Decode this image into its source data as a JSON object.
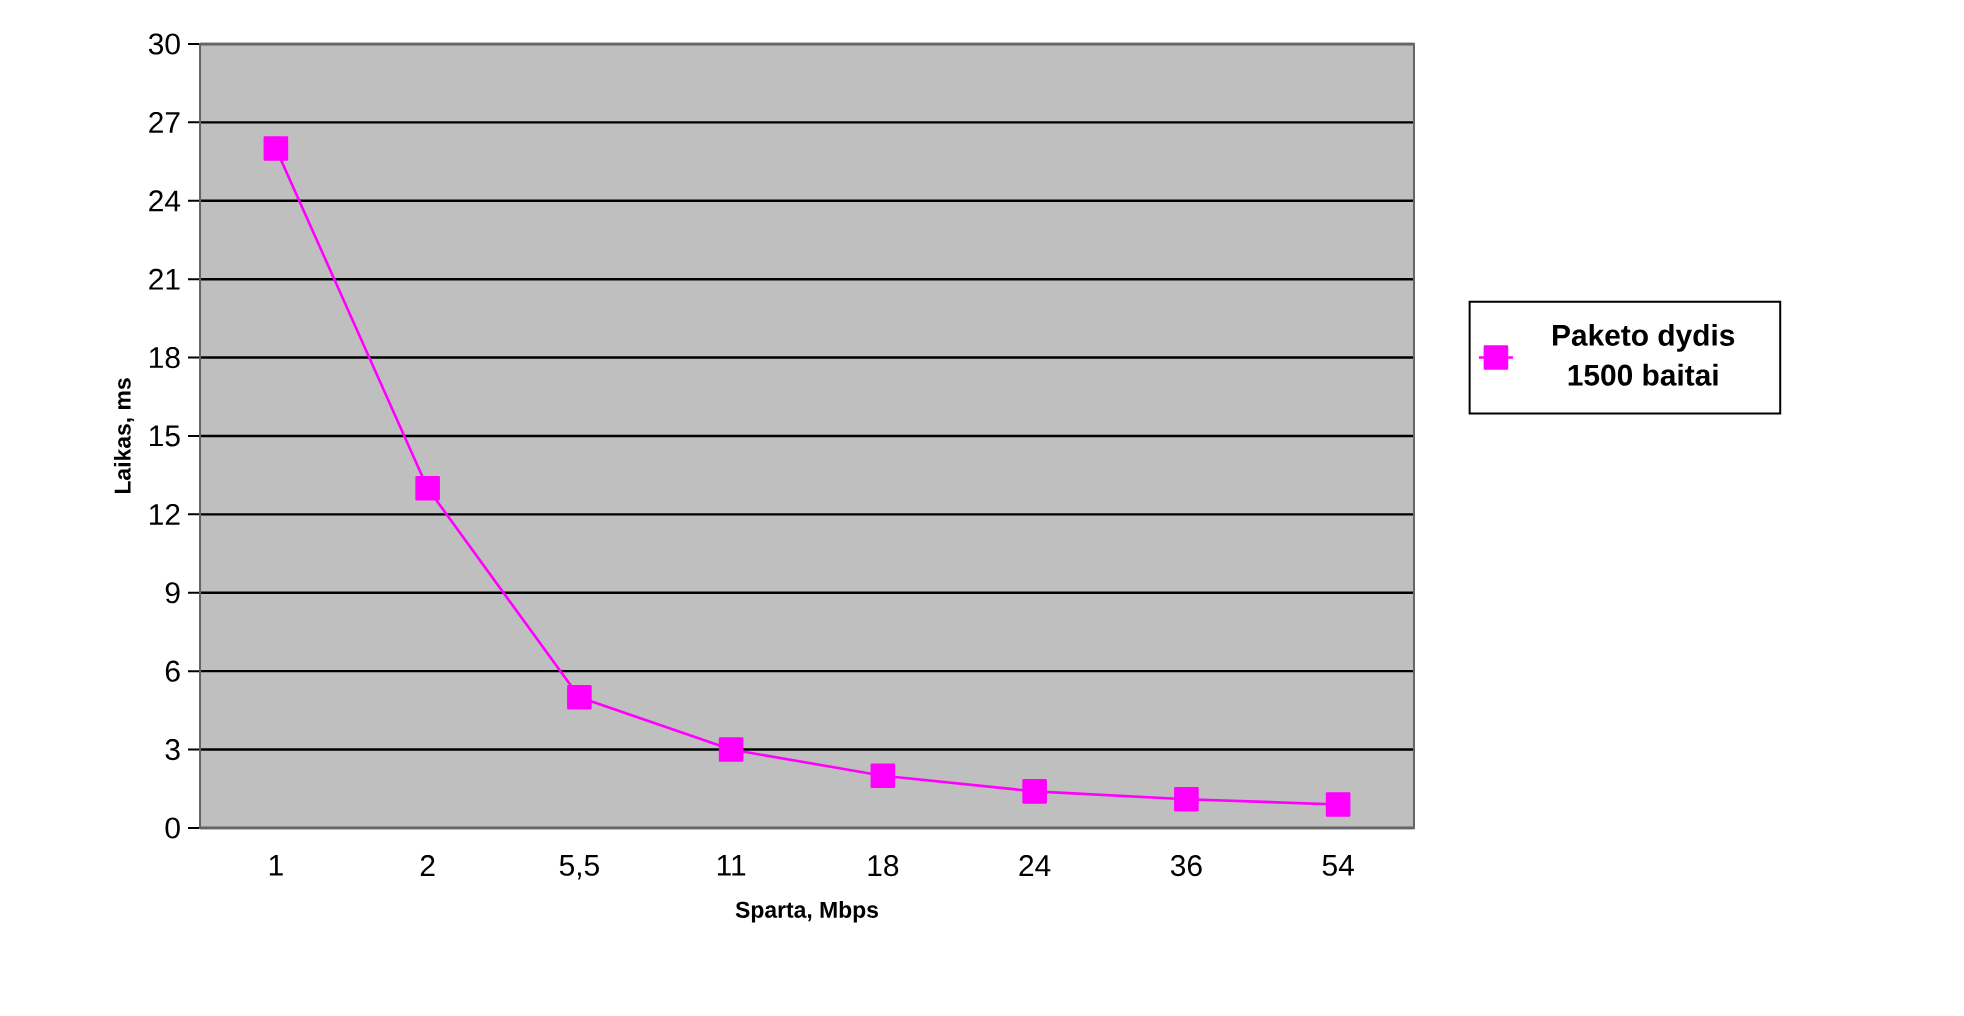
{
  "chart_data": {
    "type": "line",
    "xlabel": "Sparta, Mbps",
    "ylabel": "Laikas, ms",
    "categories": [
      "1",
      "2",
      "5,5",
      "11",
      "18",
      "24",
      "36",
      "54"
    ],
    "series": [
      {
        "name": "Paketo dydis 1500 baitai",
        "color": "#ff00ff",
        "values": [
          26,
          13,
          5,
          3,
          2,
          1.4,
          1.1,
          0.9
        ]
      }
    ],
    "ylim": [
      0,
      30
    ],
    "yticks": [
      0,
      3,
      6,
      9,
      12,
      15,
      18,
      21,
      24,
      27,
      30
    ],
    "grid": "y",
    "legend": "right",
    "marker": "square",
    "line_style": "solid"
  }
}
